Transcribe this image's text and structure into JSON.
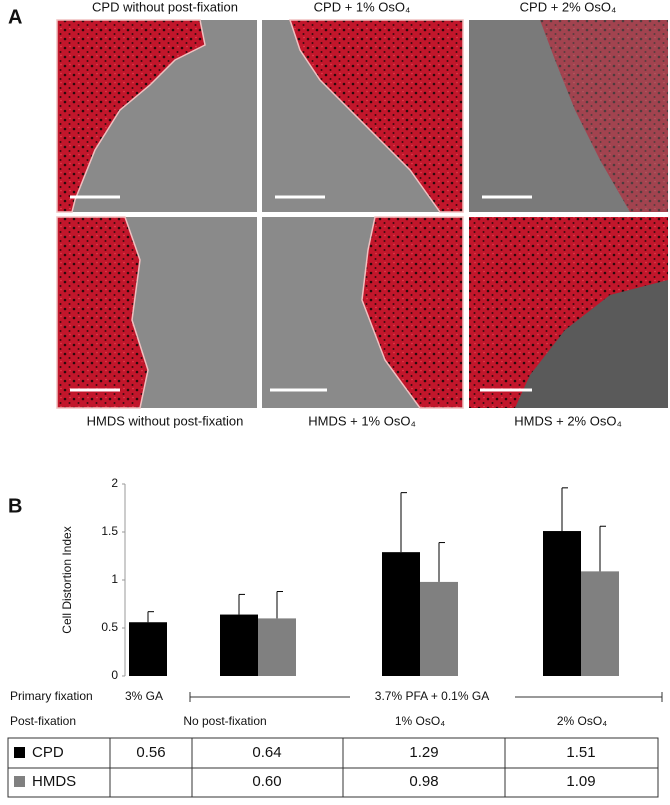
{
  "panel_a": {
    "label": "A",
    "images": [
      {
        "caption": "CPD without post-fixation"
      },
      {
        "caption": "CPD + 1% OsO₄"
      },
      {
        "caption": "CPD + 2% OsO₄"
      },
      {
        "caption": "HMDS without post-fixation"
      },
      {
        "caption": "HMDS + 1% OsO₄"
      },
      {
        "caption": "HMDS + 2% OsO₄"
      }
    ]
  },
  "chart_data": {
    "type": "bar",
    "panel_label": "B",
    "y_label": "Cell Distortion Index",
    "categories": [
      null,
      null,
      null,
      null
    ],
    "series": [
      {
        "name": "CPD",
        "color": "#000000",
        "values": [
          0.56,
          0.64,
          1.29,
          1.51
        ],
        "errors": [
          0.11,
          0.21,
          0.62,
          0.45
        ]
      },
      {
        "name": "HMDS",
        "color": "#808080",
        "values": [
          null,
          0.6,
          0.98,
          1.09
        ],
        "value_labels": [
          null,
          "0.60",
          "0.98",
          "1.09"
        ],
        "errors": [
          null,
          0.28,
          0.41,
          0.47
        ]
      }
    ],
    "ylim": [
      0,
      2
    ],
    "yticks": [
      0,
      0.5,
      1,
      1.5,
      2
    ],
    "annotations": {
      "primary_fixation": {
        "label": "Primary fixation",
        "groups": [
          "3% GA",
          "3.7% PFA + 0.1% GA"
        ]
      },
      "post_fixation": {
        "label": "Post-fixation",
        "groups": [
          "No post-fixation",
          "1% OsO₄",
          "2% OsO₄"
        ]
      }
    }
  }
}
